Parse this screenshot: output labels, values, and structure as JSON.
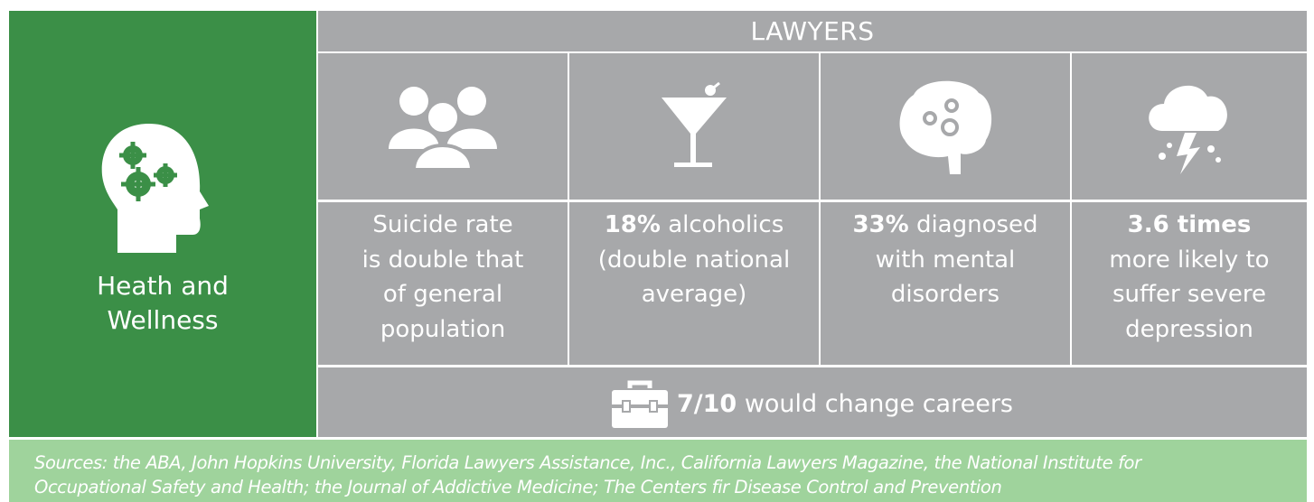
{
  "header": {
    "title": "LAWYERS"
  },
  "side": {
    "lines": [
      "Heath and",
      "Wellness"
    ]
  },
  "stats": [
    {
      "lines": [
        "Suicide rate",
        "is double that",
        "of general",
        "population"
      ]
    },
    {
      "bold": "18%",
      "lines": [
        "alcoholics",
        "(double national",
        "average)"
      ]
    },
    {
      "bold": "33%",
      "lines": [
        "diagnosed",
        "with mental",
        "disorders"
      ]
    },
    {
      "bold": "3.6 times",
      "lines": [
        "more likely to",
        "suffer severe",
        "depression"
      ]
    }
  ],
  "footer": {
    "bold": "7/10",
    "text": "would change careers"
  },
  "sources": {
    "lines": [
      "Sources: the ABA, John Hopkins University, Florida Lawyers Assistance, Inc., California Lawyers Magazine, the National Institute for",
      "Occupational Safety and Health; the Journal of Addictive Medicine; The Centers fir Disease Control and Prevention"
    ]
  }
}
